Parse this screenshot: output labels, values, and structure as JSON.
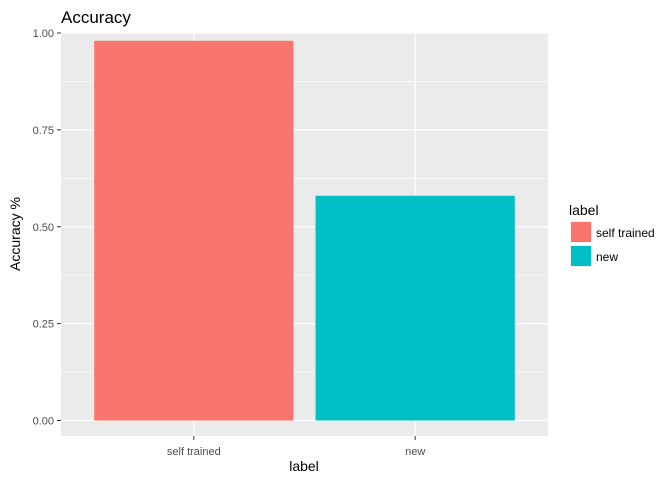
{
  "chart_data": {
    "type": "bar",
    "title": "Accuracy",
    "xlabel": "label",
    "ylabel": "Accuracy %",
    "categories": [
      "self trained",
      "new"
    ],
    "values": [
      0.98,
      0.58
    ],
    "colors": [
      "#F8766D",
      "#00BFC4"
    ],
    "ylim": [
      0,
      1.04
    ],
    "yticks": [
      0.0,
      0.25,
      0.5,
      0.75,
      1.0
    ],
    "ytick_labels": [
      "0.00",
      "0.25",
      "0.50",
      "0.75",
      "1.00"
    ],
    "grid": true,
    "panel_background": "#EBEBEB",
    "grid_color": "#FFFFFF",
    "legend": {
      "title": "label",
      "position": "right",
      "entries": [
        {
          "label": "self trained",
          "color": "#F8766D"
        },
        {
          "label": "new",
          "color": "#00BFC4"
        }
      ]
    }
  }
}
